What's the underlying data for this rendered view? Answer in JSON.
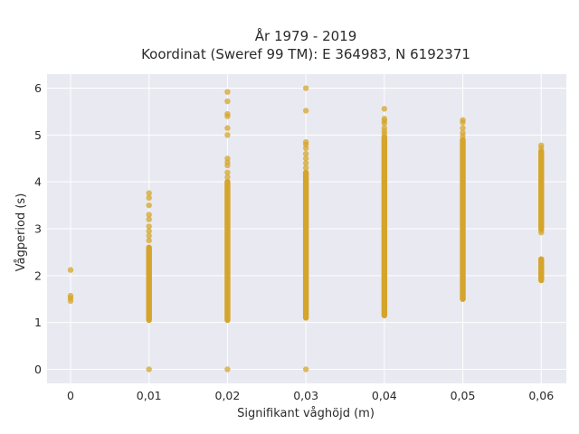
{
  "chart_data": {
    "type": "scatter",
    "title": "År 1979 - 2019",
    "subtitle": "Koordinat (Sweref 99 TM): E 364983, N 6192371",
    "xlabel": "Signifikant våghöjd (m)",
    "ylabel": "Vågperiod (s)",
    "xlim": [
      -0.003,
      0.0632
    ],
    "ylim": [
      -0.3,
      6.3
    ],
    "x_ticks": [
      0,
      0.01,
      0.02,
      0.03,
      0.04,
      0.05,
      0.06
    ],
    "x_tick_labels": [
      "0",
      "0,01",
      "0,02",
      "0,03",
      "0,04",
      "0,05",
      "0,06"
    ],
    "y_ticks": [
      0,
      1,
      2,
      3,
      4,
      5,
      6
    ],
    "y_tick_labels": [
      "0",
      "1",
      "2",
      "3",
      "4",
      "5",
      "6"
    ],
    "grid": true,
    "colors": {
      "marker": "#d4a52a",
      "background": "#e9e9f1",
      "grid": "#ffffff"
    },
    "series": [
      {
        "dense_ranges": [
          {
            "x": 0.01,
            "y": [
              1.05,
              2.6
            ]
          },
          {
            "x": 0.02,
            "y": [
              1.05,
              4.0
            ]
          },
          {
            "x": 0.03,
            "y": [
              1.1,
              4.2
            ]
          },
          {
            "x": 0.04,
            "y": [
              1.15,
              4.95
            ]
          },
          {
            "x": 0.05,
            "y": [
              1.5,
              4.9
            ]
          },
          {
            "x": 0.06,
            "y": [
              3.0,
              4.65
            ]
          },
          {
            "x": 0.06,
            "y": [
              1.9,
              2.35
            ]
          }
        ],
        "points": [
          [
            0,
            2.12
          ],
          [
            0,
            1.57
          ],
          [
            0,
            1.52
          ],
          [
            0,
            1.46
          ],
          [
            0.01,
            0.0
          ],
          [
            0.01,
            3.76
          ],
          [
            0.01,
            3.66
          ],
          [
            0.01,
            3.5
          ],
          [
            0.01,
            3.3
          ],
          [
            0.01,
            3.2
          ],
          [
            0.01,
            3.05
          ],
          [
            0.01,
            2.95
          ],
          [
            0.01,
            2.85
          ],
          [
            0.01,
            2.75
          ],
          [
            0.02,
            0.0
          ],
          [
            0.02,
            5.92
          ],
          [
            0.02,
            5.72
          ],
          [
            0.02,
            5.45
          ],
          [
            0.02,
            5.4
          ],
          [
            0.02,
            5.15
          ],
          [
            0.02,
            5.0
          ],
          [
            0.02,
            4.5
          ],
          [
            0.02,
            4.42
          ],
          [
            0.02,
            4.35
          ],
          [
            0.02,
            4.2
          ],
          [
            0.02,
            4.1
          ],
          [
            0.03,
            0.0
          ],
          [
            0.03,
            6.0
          ],
          [
            0.03,
            5.52
          ],
          [
            0.03,
            4.85
          ],
          [
            0.03,
            4.8
          ],
          [
            0.03,
            4.72
          ],
          [
            0.03,
            4.6
          ],
          [
            0.03,
            4.5
          ],
          [
            0.03,
            4.4
          ],
          [
            0.03,
            4.3
          ],
          [
            0.04,
            5.56
          ],
          [
            0.04,
            5.35
          ],
          [
            0.04,
            5.3
          ],
          [
            0.04,
            5.25
          ],
          [
            0.04,
            5.15
          ],
          [
            0.04,
            5.08
          ],
          [
            0.04,
            5.02
          ],
          [
            0.05,
            5.32
          ],
          [
            0.05,
            5.27
          ],
          [
            0.05,
            5.15
          ],
          [
            0.05,
            5.05
          ],
          [
            0.05,
            4.98
          ],
          [
            0.06,
            4.78
          ],
          [
            0.06,
            4.72
          ],
          [
            0.06,
            2.97
          ],
          [
            0.06,
            2.92
          ]
        ]
      }
    ]
  }
}
